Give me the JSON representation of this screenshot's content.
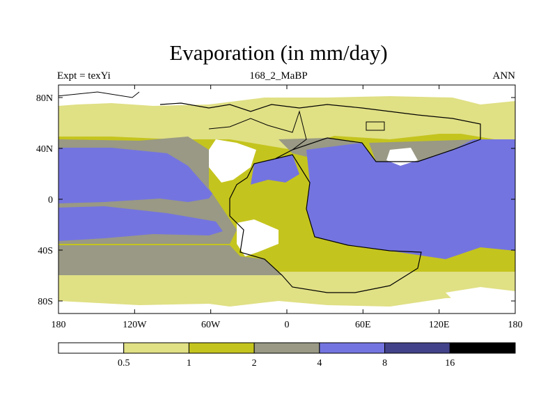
{
  "title": "Evaporation (in mm/day)",
  "subtitle_left": "Expt = texYi",
  "subtitle_center": "168_2_MaBP",
  "subtitle_right": "ANN",
  "axes": {
    "lat_ticks": [
      "80N",
      "40N",
      "0",
      "40S",
      "80S"
    ],
    "lon_ticks": [
      "180",
      "120W",
      "60W",
      "0",
      "60E",
      "120E",
      "180"
    ]
  },
  "colorbar": {
    "colors": [
      "#ffffff",
      "#e0e085",
      "#c4c41e",
      "#999985",
      "#7474e0",
      "#42428a",
      "#000000"
    ],
    "labels": [
      "0.5",
      "1",
      "2",
      "4",
      "8",
      "16"
    ]
  }
}
